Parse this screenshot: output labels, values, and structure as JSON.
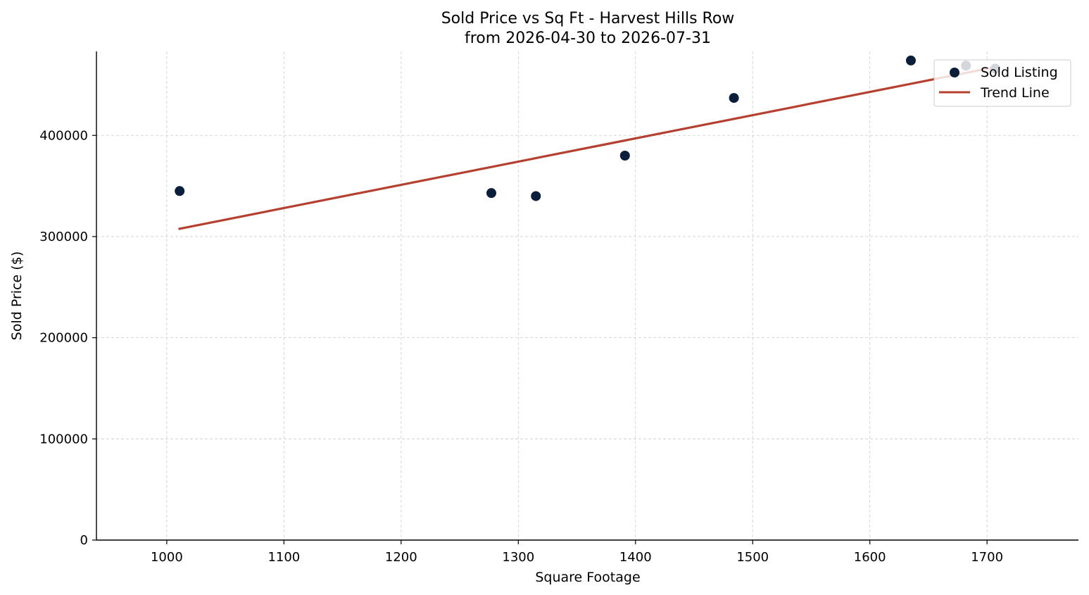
{
  "chart_data": {
    "type": "scatter",
    "title": "Sold Price vs Sq Ft - Harvest Hills Row",
    "subtitle": "from 2026-04-30 to 2026-07-31",
    "xlabel": "Square Footage",
    "ylabel": "Sold Price ($)",
    "xlim": [
      940,
      1778
    ],
    "ylim": [
      0,
      483000
    ],
    "xticks": [
      1000,
      1100,
      1200,
      1300,
      1400,
      1500,
      1600,
      1700
    ],
    "xtick_labels": [
      "1000",
      "1100",
      "1200",
      "1300",
      "1400",
      "1500",
      "1600",
      "1700"
    ],
    "yticks": [
      0,
      100000,
      200000,
      300000,
      400000
    ],
    "ytick_labels": [
      "0",
      "100000",
      "200000",
      "300000",
      "400000"
    ],
    "grid": true,
    "legend_position": "top-right",
    "series": [
      {
        "name": "Sold Listing",
        "kind": "scatter",
        "color": "#0b1f3a",
        "points": [
          {
            "x": 1011,
            "y": 345000
          },
          {
            "x": 1277,
            "y": 343000
          },
          {
            "x": 1315,
            "y": 340000
          },
          {
            "x": 1391,
            "y": 380000
          },
          {
            "x": 1484,
            "y": 437000
          },
          {
            "x": 1635,
            "y": 474000
          },
          {
            "x": 1682,
            "y": 469000
          },
          {
            "x": 1707,
            "y": 466000
          }
        ]
      },
      {
        "name": "Trend Line",
        "kind": "line",
        "color": "#b5402f",
        "points": [
          {
            "x": 1010,
            "y": 307500
          },
          {
            "x": 1707,
            "y": 467500
          }
        ]
      }
    ]
  }
}
